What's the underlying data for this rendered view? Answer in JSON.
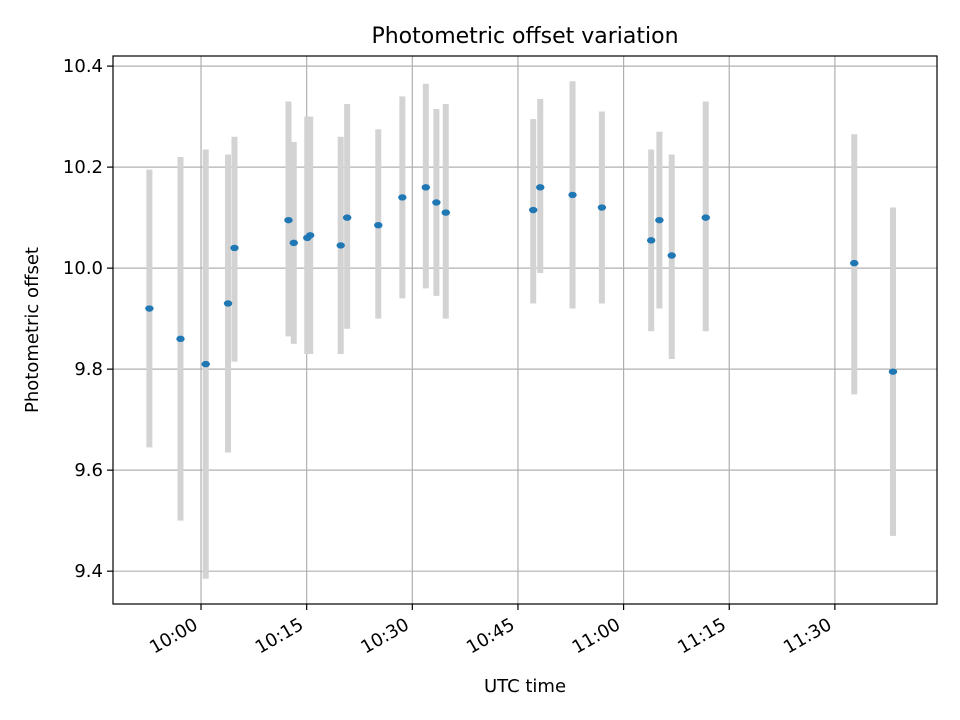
{
  "chart_data": {
    "type": "scatter",
    "title": "Photometric offset variation",
    "xlabel": "UTC time",
    "ylabel": "Photometric offset",
    "xlim": [
      "09:47:30",
      "11:44:30"
    ],
    "ylim": [
      9.335,
      10.42
    ],
    "grid": true,
    "x_ticks": [
      "10:00",
      "10:15",
      "10:30",
      "10:45",
      "11:00",
      "11:15",
      "11:30"
    ],
    "y_ticks": [
      "9.4",
      "9.6",
      "9.8",
      "10.0",
      "10.2",
      "10.4"
    ],
    "colors": {
      "points": "#1f77b4",
      "error_bars": "#d3d3d3",
      "grid": "#b0b0b0"
    },
    "series": [
      {
        "points": [
          {
            "x": "09:52:40",
            "y": 9.92,
            "ylo": 9.645,
            "yhi": 10.195
          },
          {
            "x": "09:57:05",
            "y": 9.86,
            "ylo": 9.5,
            "yhi": 10.22
          },
          {
            "x": "10:00:40",
            "y": 9.81,
            "ylo": 9.385,
            "yhi": 10.235
          },
          {
            "x": "10:03:50",
            "y": 9.93,
            "ylo": 9.635,
            "yhi": 10.225
          },
          {
            "x": "10:04:45",
            "y": 10.04,
            "ylo": 9.815,
            "yhi": 10.26
          },
          {
            "x": "10:12:25",
            "y": 10.095,
            "ylo": 9.865,
            "yhi": 10.33
          },
          {
            "x": "10:13:10",
            "y": 10.05,
            "ylo": 9.85,
            "yhi": 10.25
          },
          {
            "x": "10:15:05",
            "y": 10.06,
            "ylo": 9.83,
            "yhi": 10.3
          },
          {
            "x": "10:15:30",
            "y": 10.065,
            "ylo": 9.83,
            "yhi": 10.3
          },
          {
            "x": "10:19:50",
            "y": 10.045,
            "ylo": 9.83,
            "yhi": 10.26
          },
          {
            "x": "10:20:45",
            "y": 10.1,
            "ylo": 9.88,
            "yhi": 10.325
          },
          {
            "x": "10:25:10",
            "y": 10.085,
            "ylo": 9.9,
            "yhi": 10.275
          },
          {
            "x": "10:28:35",
            "y": 10.14,
            "ylo": 9.94,
            "yhi": 10.34
          },
          {
            "x": "10:31:55",
            "y": 10.16,
            "ylo": 9.96,
            "yhi": 10.365
          },
          {
            "x": "10:33:25",
            "y": 10.13,
            "ylo": 9.945,
            "yhi": 10.315
          },
          {
            "x": "10:34:45",
            "y": 10.11,
            "ylo": 9.9,
            "yhi": 10.325
          },
          {
            "x": "10:47:10",
            "y": 10.115,
            "ylo": 9.93,
            "yhi": 10.295
          },
          {
            "x": "10:48:10",
            "y": 10.16,
            "ylo": 9.99,
            "yhi": 10.335
          },
          {
            "x": "10:52:45",
            "y": 10.145,
            "ylo": 9.92,
            "yhi": 10.37
          },
          {
            "x": "10:56:55",
            "y": 10.12,
            "ylo": 9.93,
            "yhi": 10.31
          },
          {
            "x": "11:03:55",
            "y": 10.055,
            "ylo": 9.875,
            "yhi": 10.235
          },
          {
            "x": "11:05:05",
            "y": 10.095,
            "ylo": 9.92,
            "yhi": 10.27
          },
          {
            "x": "11:06:50",
            "y": 10.025,
            "ylo": 9.82,
            "yhi": 10.225
          },
          {
            "x": "11:11:40",
            "y": 10.1,
            "ylo": 9.875,
            "yhi": 10.33
          },
          {
            "x": "11:32:45",
            "y": 10.01,
            "ylo": 9.75,
            "yhi": 10.265
          },
          {
            "x": "11:38:15",
            "y": 9.795,
            "ylo": 9.47,
            "yhi": 10.12
          }
        ]
      }
    ]
  }
}
